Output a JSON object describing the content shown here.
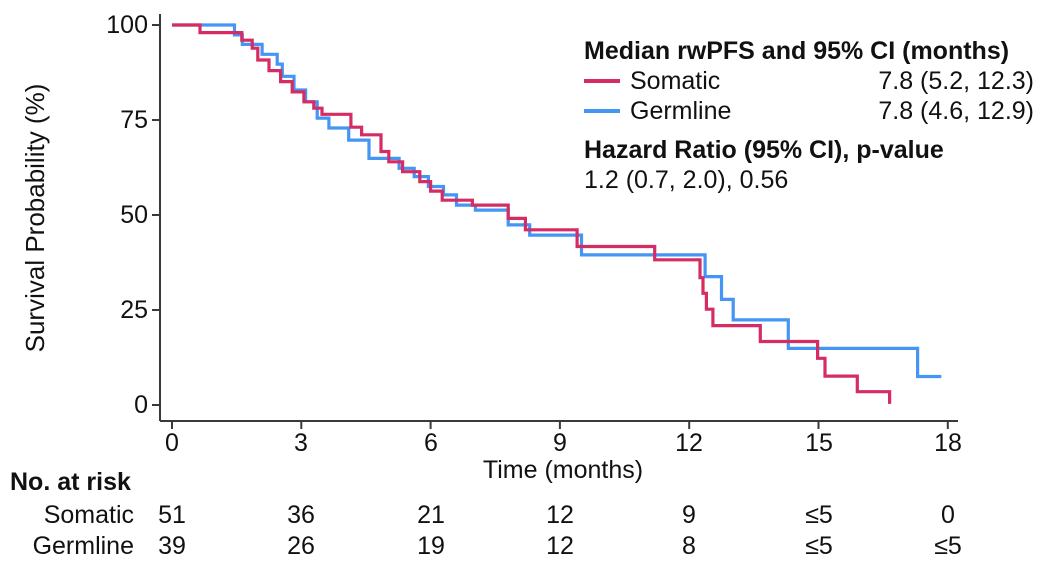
{
  "figure_type": "kaplan-meier-survival-plot",
  "legend": {
    "title": "Median rwPFS and 95% CI (months)",
    "entries": [
      {
        "label": "Somatic",
        "value": "7.8 (5.2, 12.3)"
      },
      {
        "label": "Germline",
        "value": "7.8 (4.6, 12.9)"
      }
    ],
    "hr_title": "Hazard Ratio (95% CI), p-value",
    "hr_value": "1.2 (0.7, 2.0), 0.56"
  },
  "risk_table": {
    "title": "No. at risk",
    "rows": [
      {
        "label": "Somatic",
        "values": [
          "51",
          "36",
          "21",
          "12",
          "9",
          "≤5",
          "0"
        ]
      },
      {
        "label": "Germline",
        "values": [
          "39",
          "26",
          "19",
          "12",
          "8",
          "≤5",
          "≤5"
        ]
      }
    ]
  },
  "chart_data": {
    "type": "line",
    "subtype": "kaplan-meier-step",
    "title": "",
    "xlabel": "Time (months)",
    "ylabel": "Survival Probability (%)",
    "xlim": [
      0,
      18
    ],
    "ylim": [
      0,
      100
    ],
    "grid": false,
    "legend_position": "top-right",
    "x_ticks": [
      0,
      3,
      6,
      9,
      12,
      15,
      18
    ],
    "y_ticks": [
      0,
      25,
      50,
      75,
      100
    ],
    "x_tick_labels": [
      "0",
      "3",
      "6",
      "9",
      "12",
      "15",
      "18"
    ],
    "y_tick_labels": [
      "100",
      "75",
      "50",
      "25",
      "0"
    ],
    "series": [
      {
        "name": "Somatic",
        "color": "#D52D63",
        "n": 51,
        "median_months": 7.8,
        "ci_95": [
          5.2,
          12.3
        ],
        "end_t": 16.65,
        "steps": [
          [
            0,
            100
          ],
          [
            0.65,
            98
          ],
          [
            1.62,
            96
          ],
          [
            1.86,
            93.9
          ],
          [
            1.99,
            90.8
          ],
          [
            2.25,
            88
          ],
          [
            2.52,
            85.1
          ],
          [
            2.79,
            82.4
          ],
          [
            3.06,
            79.8
          ],
          [
            3.29,
            78.1
          ],
          [
            3.48,
            76.5
          ],
          [
            4.15,
            73.1
          ],
          [
            4.4,
            71.1
          ],
          [
            4.85,
            66.7
          ],
          [
            5.03,
            64
          ],
          [
            5.35,
            61.4
          ],
          [
            5.75,
            58.8
          ],
          [
            6.0,
            56.3
          ],
          [
            6.27,
            53.9
          ],
          [
            6.97,
            52.6
          ],
          [
            7.8,
            49.1
          ],
          [
            8.2,
            46.1
          ],
          [
            9.4,
            41.7
          ],
          [
            11.2,
            38.2
          ],
          [
            12.25,
            33.5
          ],
          [
            12.32,
            29.4
          ],
          [
            12.4,
            25.2
          ],
          [
            12.55,
            20.9
          ],
          [
            13.65,
            16.7
          ],
          [
            14.98,
            12.3
          ],
          [
            15.15,
            7.6
          ],
          [
            15.9,
            3.5
          ],
          [
            16.65,
            0.3
          ]
        ]
      },
      {
        "name": "Germline",
        "color": "#4495F4",
        "n": 39,
        "median_months": 7.8,
        "ci_95": [
          4.6,
          12.9
        ],
        "end_t": 17.85,
        "steps": [
          [
            0,
            100
          ],
          [
            1.45,
            97.4
          ],
          [
            1.63,
            94.9
          ],
          [
            2.09,
            92.3
          ],
          [
            2.44,
            89.7
          ],
          [
            2.56,
            86.5
          ],
          [
            2.83,
            82.9
          ],
          [
            3.1,
            79.8
          ],
          [
            3.37,
            75.5
          ],
          [
            3.64,
            72.9
          ],
          [
            4.1,
            69.7
          ],
          [
            4.57,
            64.9
          ],
          [
            5.27,
            62.3
          ],
          [
            5.62,
            60.1
          ],
          [
            5.95,
            57.5
          ],
          [
            6.3,
            55.3
          ],
          [
            6.6,
            52.6
          ],
          [
            7.04,
            51.3
          ],
          [
            7.8,
            47.4
          ],
          [
            8.3,
            44.7
          ],
          [
            9.5,
            39.5
          ],
          [
            12.37,
            33.8
          ],
          [
            12.75,
            27.8
          ],
          [
            13.02,
            22.4
          ],
          [
            14.3,
            14.9
          ],
          [
            17.3,
            7.5
          ]
        ]
      }
    ],
    "statistics": {
      "hazard_ratio": 1.2,
      "hr_ci_95": [
        0.7,
        2.0
      ],
      "p_value": 0.56
    }
  }
}
